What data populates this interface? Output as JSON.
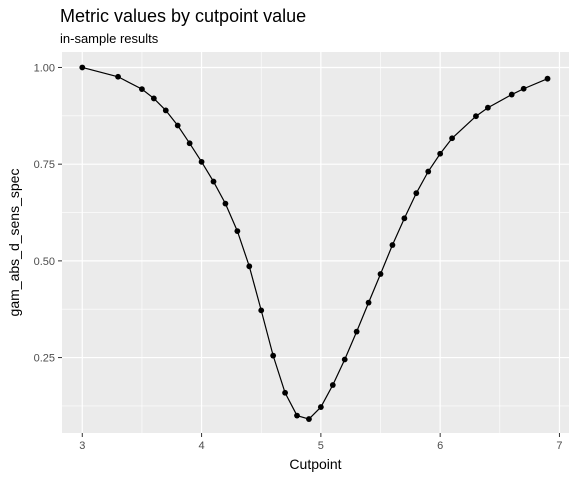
{
  "chart_data": {
    "type": "line",
    "title": "Metric values by cutpoint value",
    "subtitle": "in-sample results",
    "xlabel": "Cutpoint",
    "ylabel": "gam_abs_d_sens_spec",
    "xlim": [
      2.83,
      7.08
    ],
    "ylim": [
      0.055,
      1.04
    ],
    "x_ticks": [
      3,
      4,
      5,
      6,
      7
    ],
    "x_tick_labels": [
      "3",
      "4",
      "5",
      "6",
      "7"
    ],
    "y_ticks": [
      0.25,
      0.5,
      0.75,
      1.0
    ],
    "y_tick_labels": [
      "0.25",
      "0.50",
      "0.75",
      "1.00"
    ],
    "grid": true,
    "legend": "none",
    "colors": {
      "panel": "#ebebeb",
      "grid": "#ffffff",
      "line": "#000000",
      "point": "#000000",
      "tick_text": "#4d4d4d"
    },
    "series": [
      {
        "x": [
          3.0,
          3.3,
          3.5,
          3.6,
          3.7,
          3.8,
          3.9,
          4.0,
          4.1,
          4.2,
          4.3,
          4.4,
          4.5,
          4.6,
          4.7,
          4.8,
          4.9,
          5.0,
          5.1,
          5.2,
          5.3,
          5.4,
          5.5,
          5.6,
          5.7,
          5.8,
          5.9,
          6.0,
          6.1,
          6.3,
          6.4,
          6.6,
          6.7,
          6.9
        ],
        "y": [
          1.0,
          0.976,
          0.944,
          0.92,
          0.889,
          0.85,
          0.804,
          0.756,
          0.705,
          0.648,
          0.577,
          0.486,
          0.372,
          0.255,
          0.159,
          0.1,
          0.091,
          0.122,
          0.179,
          0.245,
          0.317,
          0.392,
          0.466,
          0.541,
          0.61,
          0.675,
          0.731,
          0.777,
          0.817,
          0.874,
          0.896,
          0.93,
          0.945,
          0.971
        ]
      }
    ]
  }
}
